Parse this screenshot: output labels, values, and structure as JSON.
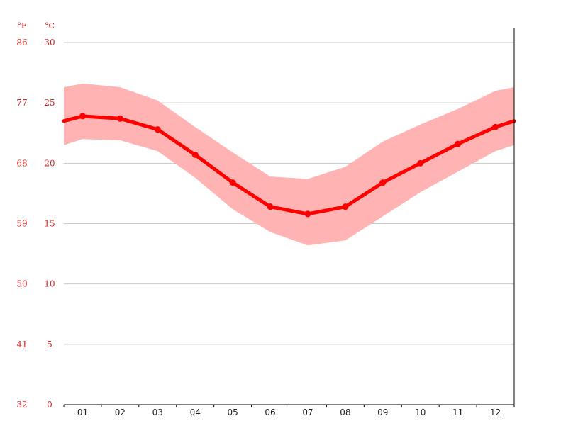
{
  "chart_data": {
    "type": "line",
    "title": "",
    "xlabel": "",
    "ylabel": "",
    "units": {
      "fahrenheit": "°F",
      "celsius": "°C"
    },
    "categories": [
      "01",
      "02",
      "03",
      "04",
      "05",
      "06",
      "07",
      "08",
      "09",
      "10",
      "11",
      "12"
    ],
    "y_ticks_c": [
      "0",
      "5",
      "10",
      "15",
      "20",
      "25",
      "30"
    ],
    "y_ticks_f": [
      "32",
      "41",
      "50",
      "59",
      "68",
      "77",
      "86"
    ],
    "ylim": [
      0,
      30
    ],
    "grid": true,
    "series": [
      {
        "values": [
          23.9,
          23.7,
          22.8,
          20.7,
          18.4,
          16.4,
          15.8,
          16.4,
          18.4,
          20.0,
          21.6,
          23.0
        ]
      },
      {
        "values": [
          26.6,
          26.3,
          25.2,
          23.0,
          20.9,
          18.9,
          18.7,
          19.7,
          21.8,
          23.2,
          24.5,
          26.0
        ]
      },
      {
        "values": [
          22.0,
          21.9,
          21.0,
          18.8,
          16.2,
          14.3,
          13.2,
          13.6,
          15.6,
          17.6,
          19.3,
          21.0
        ]
      }
    ],
    "wrap_values": {
      "mean": 23.5,
      "max": 26.3,
      "min": 21.5
    },
    "colors": {
      "line": "#ff0000",
      "band": "#ffb3b3",
      "grid": "#c8c8c8",
      "labels": "#e0201e",
      "axis": "#000000"
    }
  }
}
